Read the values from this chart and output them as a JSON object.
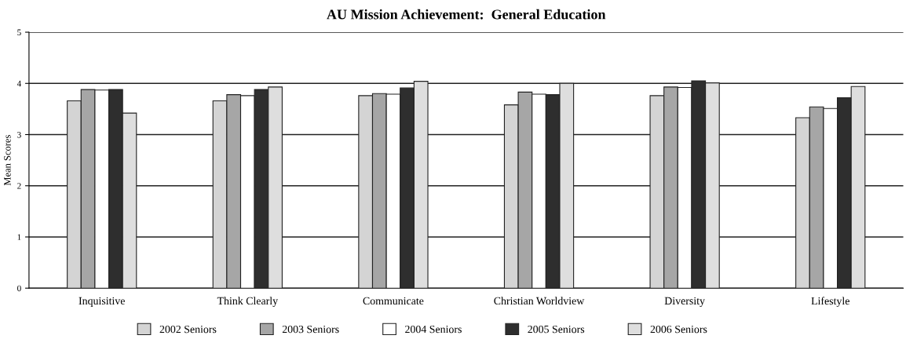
{
  "chart_data": {
    "type": "bar",
    "title": "AU Mission Achievement:  General Education",
    "ylabel": "Mean Scores",
    "categories": [
      "Inquisitive",
      "Think Clearly",
      "Communicate",
      "Christian Worldview",
      "Diversity",
      "Lifestyle"
    ],
    "series": [
      {
        "name": "2002 Seniors",
        "color": "#d4d4d4",
        "values": [
          3.66,
          3.66,
          3.76,
          3.58,
          3.76,
          3.33
        ]
      },
      {
        "name": "2003 Seniors",
        "color": "#a6a6a6",
        "values": [
          3.88,
          3.78,
          3.8,
          3.83,
          3.93,
          3.54
        ]
      },
      {
        "name": "2004 Seniors",
        "color": "#ffffff",
        "values": [
          3.87,
          3.76,
          3.79,
          3.79,
          3.92,
          3.51
        ]
      },
      {
        "name": "2005 Seniors",
        "color": "#2e2e2e",
        "values": [
          3.88,
          3.88,
          3.91,
          3.78,
          4.05,
          3.72
        ]
      },
      {
        "name": "2006 Seniors",
        "color": "#dedede",
        "values": [
          3.42,
          3.93,
          4.04,
          4.0,
          4.01,
          3.94
        ]
      }
    ],
    "ylim": [
      0,
      5
    ],
    "yticks": [
      0,
      1,
      2,
      3,
      4,
      5
    ],
    "grid": "y",
    "legend": "bottom"
  }
}
